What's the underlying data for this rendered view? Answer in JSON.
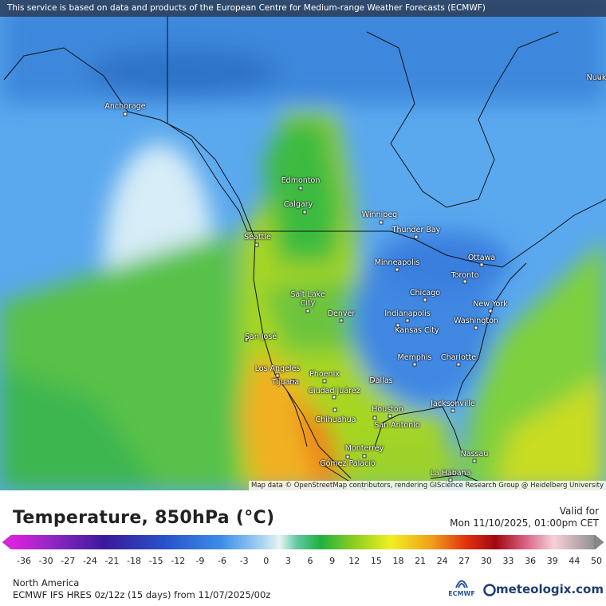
{
  "header": {
    "notice": "This service is based on data and products of the European Centre for Medium-range Weather Forecasts (ECMWF)"
  },
  "map": {
    "cities": [
      "Anchorage",
      "Edmonton",
      "Calgary",
      "Winnipeg",
      "Seattle",
      "Thunder Bay",
      "Ottawa",
      "Minneapolis",
      "Toronto",
      "Salt Lake City",
      "Chicago",
      "New York",
      "Indianapolis",
      "Denver",
      "Washington",
      "Kansas City",
      "San José",
      "Memphis",
      "Charlotte",
      "Los Angeles",
      "Phoenix",
      "Dallas",
      "Tijuana",
      "Ciudad Juárez",
      "Houston",
      "Jacksonville",
      "San Antonio",
      "Chihuahua",
      "Monterrey",
      "Nassau",
      "Gómez Palacio",
      "La Habana",
      "Nuuk"
    ],
    "attribution": "Map data © OpenStreetMap contributors, rendering GIScience Research Group @ Heidelberg University"
  },
  "legend": {
    "title": "Temperature, 850hPa (°C)",
    "valid_label": "Valid for",
    "valid_time": "Mon 11/10/2025, 01:00pm CET",
    "ticks": [
      -36,
      -30,
      -27,
      -24,
      -21,
      -18,
      -15,
      -12,
      -9,
      -6,
      -3,
      0,
      3,
      6,
      9,
      12,
      15,
      18,
      21,
      24,
      27,
      30,
      33,
      36,
      39,
      44,
      50
    ]
  },
  "footer": {
    "region": "North America",
    "model": "ECMWF IFS HRES 0z/12z (15 days) from  11/07/2025/00z",
    "ecmwf_logo": "ECMWF",
    "brand": "meteologix.com"
  }
}
